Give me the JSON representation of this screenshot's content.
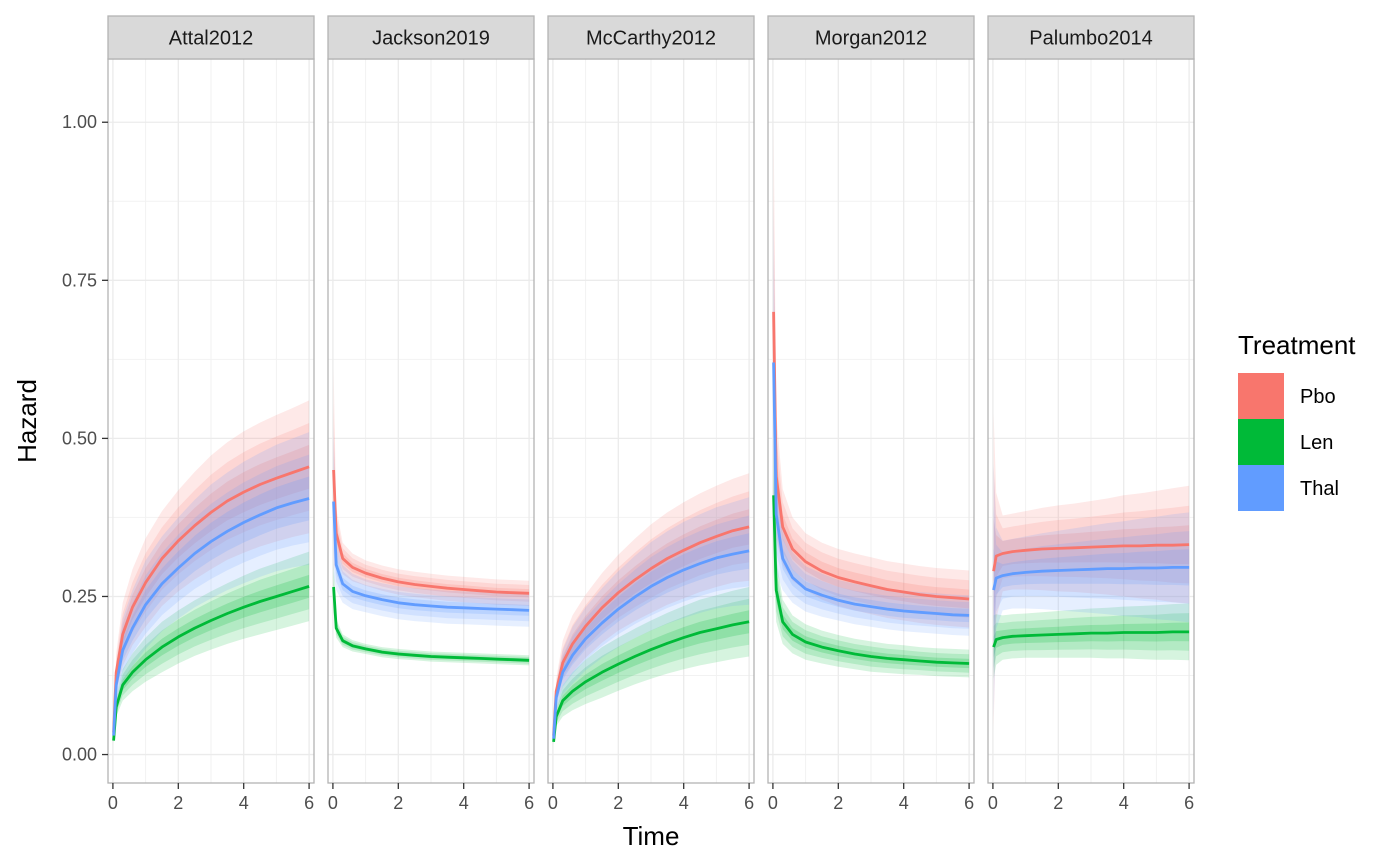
{
  "chart_data": {
    "type": "line",
    "facet_variable": "study",
    "xlabel": "Time",
    "ylabel": "Hazard",
    "xlim": [
      -0.15,
      6.15
    ],
    "ylim": [
      -0.045,
      1.1
    ],
    "x_ticks": [
      0,
      2,
      4,
      6
    ],
    "x_tick_labels": [
      "0",
      "2",
      "4",
      "6"
    ],
    "y_ticks": [
      0,
      0.25,
      0.5,
      0.75,
      1.0
    ],
    "y_tick_labels": [
      "0.00",
      "0.25",
      "0.50",
      "0.75",
      "1.00"
    ],
    "grid": true,
    "theme": "bw",
    "legend": {
      "title": "Treatment",
      "position": "right",
      "entries": [
        {
          "name": "Pbo",
          "color": "#F8766D"
        },
        {
          "name": "Len",
          "color": "#00BA38"
        },
        {
          "name": "Thal",
          "color": "#619CFF"
        }
      ]
    },
    "x": [
      0.02,
      0.1,
      0.3,
      0.6,
      1,
      1.5,
      2,
      2.5,
      3,
      3.5,
      4,
      4.5,
      5,
      5.5,
      6
    ],
    "panels": [
      {
        "title": "Attal2012",
        "series": [
          {
            "name": "Pbo",
            "values": [
              0.035,
              0.13,
              0.19,
              0.233,
              0.272,
              0.31,
              0.338,
              0.362,
              0.383,
              0.401,
              0.415,
              0.427,
              0.437,
              0.446,
              0.455
            ],
            "band_width": [
              0.005,
              0.03,
              0.05,
              0.06,
              0.07,
              0.075,
              0.08,
              0.085,
              0.09,
              0.093,
              0.096,
              0.098,
              0.1,
              0.102,
              0.105
            ]
          },
          {
            "name": "Len",
            "values": [
              0.022,
              0.075,
              0.11,
              0.13,
              0.15,
              0.17,
              0.186,
              0.2,
              0.212,
              0.223,
              0.233,
              0.242,
              0.25,
              0.258,
              0.266
            ],
            "band_width": [
              0.004,
              0.015,
              0.025,
              0.03,
              0.035,
              0.04,
              0.042,
              0.044,
              0.046,
              0.048,
              0.05,
              0.052,
              0.053,
              0.054,
              0.055
            ]
          },
          {
            "name": "Thal",
            "values": [
              0.03,
              0.11,
              0.165,
              0.2,
              0.237,
              0.27,
              0.295,
              0.318,
              0.337,
              0.353,
              0.367,
              0.379,
              0.39,
              0.398,
              0.405
            ],
            "band_width": [
              0.005,
              0.03,
              0.05,
              0.06,
              0.07,
              0.075,
              0.08,
              0.085,
              0.09,
              0.093,
              0.096,
              0.098,
              0.1,
              0.102,
              0.105
            ]
          }
        ]
      },
      {
        "title": "Jackson2019",
        "series": [
          {
            "name": "Pbo",
            "values": [
              0.45,
              0.35,
              0.31,
              0.296,
              0.287,
              0.279,
              0.273,
              0.269,
              0.266,
              0.263,
              0.261,
              0.259,
              0.257,
              0.256,
              0.255
            ],
            "band_width": [
              0.16,
              0.04,
              0.025,
              0.022,
              0.02,
              0.02,
              0.02,
              0.02,
              0.02,
              0.02,
              0.02,
              0.02,
              0.02,
              0.02,
              0.02
            ]
          },
          {
            "name": "Len",
            "values": [
              0.265,
              0.2,
              0.18,
              0.172,
              0.167,
              0.162,
              0.159,
              0.157,
              0.155,
              0.154,
              0.153,
              0.152,
              0.151,
              0.15,
              0.149
            ],
            "band_width": [
              0.04,
              0.015,
              0.01,
              0.009,
              0.008,
              0.008,
              0.008,
              0.008,
              0.008,
              0.008,
              0.008,
              0.008,
              0.008,
              0.008,
              0.008
            ]
          },
          {
            "name": "Thal",
            "values": [
              0.4,
              0.3,
              0.27,
              0.258,
              0.251,
              0.245,
              0.24,
              0.237,
              0.235,
              0.233,
              0.232,
              0.231,
              0.23,
              0.229,
              0.228
            ],
            "band_width": [
              0.12,
              0.04,
              0.03,
              0.028,
              0.026,
              0.026,
              0.026,
              0.026,
              0.026,
              0.026,
              0.026,
              0.026,
              0.026,
              0.026,
              0.026
            ]
          }
        ]
      },
      {
        "title": "McCarthy2012",
        "series": [
          {
            "name": "Pbo",
            "values": [
              0.03,
              0.1,
              0.145,
              0.175,
              0.203,
              0.232,
              0.256,
              0.276,
              0.294,
              0.31,
              0.323,
              0.335,
              0.345,
              0.354,
              0.36
            ],
            "band_width": [
              0.005,
              0.02,
              0.035,
              0.045,
              0.05,
              0.055,
              0.06,
              0.065,
              0.07,
              0.073,
              0.076,
              0.078,
              0.08,
              0.082,
              0.085
            ]
          },
          {
            "name": "Len",
            "values": [
              0.02,
              0.06,
              0.085,
              0.1,
              0.115,
              0.13,
              0.143,
              0.155,
              0.166,
              0.176,
              0.185,
              0.193,
              0.199,
              0.205,
              0.21
            ],
            "band_width": [
              0.004,
              0.015,
              0.025,
              0.03,
              0.035,
              0.04,
              0.042,
              0.044,
              0.046,
              0.048,
              0.05,
              0.052,
              0.053,
              0.054,
              0.055
            ]
          },
          {
            "name": "Thal",
            "values": [
              0.025,
              0.09,
              0.13,
              0.157,
              0.183,
              0.208,
              0.23,
              0.249,
              0.266,
              0.28,
              0.292,
              0.302,
              0.311,
              0.317,
              0.322
            ],
            "band_width": [
              0.005,
              0.02,
              0.035,
              0.045,
              0.05,
              0.055,
              0.06,
              0.065,
              0.07,
              0.073,
              0.076,
              0.078,
              0.08,
              0.082,
              0.085
            ]
          }
        ]
      },
      {
        "title": "Morgan2012",
        "series": [
          {
            "name": "Pbo",
            "values": [
              0.7,
              0.44,
              0.36,
              0.325,
              0.305,
              0.29,
              0.28,
              0.273,
              0.267,
              0.261,
              0.257,
              0.253,
              0.25,
              0.248,
              0.246
            ],
            "band_width": [
              0.3,
              0.1,
              0.06,
              0.05,
              0.045,
              0.045,
              0.045,
              0.045,
              0.045,
              0.045,
              0.045,
              0.045,
              0.045,
              0.045,
              0.045
            ]
          },
          {
            "name": "Len",
            "values": [
              0.41,
              0.26,
              0.21,
              0.19,
              0.178,
              0.17,
              0.164,
              0.159,
              0.155,
              0.152,
              0.15,
              0.148,
              0.146,
              0.145,
              0.144
            ],
            "band_width": [
              0.12,
              0.05,
              0.035,
              0.03,
              0.028,
              0.026,
              0.025,
              0.024,
              0.024,
              0.023,
              0.023,
              0.022,
              0.022,
              0.022,
              0.022
            ]
          },
          {
            "name": "Thal",
            "values": [
              0.62,
              0.38,
              0.31,
              0.28,
              0.262,
              0.252,
              0.244,
              0.238,
              0.234,
              0.23,
              0.227,
              0.225,
              0.223,
              0.221,
              0.22
            ],
            "band_width": [
              0.25,
              0.09,
              0.05,
              0.04,
              0.036,
              0.034,
              0.032,
              0.032,
              0.032,
              0.032,
              0.032,
              0.032,
              0.032,
              0.032,
              0.032
            ]
          }
        ]
      },
      {
        "title": "Palumbo2014",
        "series": [
          {
            "name": "Pbo",
            "values": [
              0.29,
              0.314,
              0.318,
              0.321,
              0.323,
              0.325,
              0.326,
              0.327,
              0.328,
              0.329,
              0.33,
              0.33,
              0.331,
              0.331,
              0.332
            ],
            "band_width": [
              0.25,
              0.1,
              0.06,
              0.06,
              0.062,
              0.065,
              0.068,
              0.07,
              0.073,
              0.076,
              0.08,
              0.083,
              0.086,
              0.09,
              0.093
            ]
          },
          {
            "name": "Len",
            "values": [
              0.17,
              0.182,
              0.185,
              0.187,
              0.188,
              0.189,
              0.19,
              0.191,
              0.192,
              0.192,
              0.193,
              0.193,
              0.193,
              0.194,
              0.194
            ],
            "band_width": [
              0.05,
              0.04,
              0.035,
              0.035,
              0.035,
              0.036,
              0.037,
              0.038,
              0.039,
              0.04,
              0.041,
              0.042,
              0.043,
              0.044,
              0.045
            ]
          },
          {
            "name": "Thal",
            "values": [
              0.26,
              0.279,
              0.283,
              0.286,
              0.288,
              0.29,
              0.291,
              0.292,
              0.293,
              0.294,
              0.294,
              0.295,
              0.295,
              0.296,
              0.296
            ],
            "band_width": [
              0.2,
              0.08,
              0.055,
              0.055,
              0.057,
              0.06,
              0.063,
              0.066,
              0.069,
              0.072,
              0.075,
              0.078,
              0.081,
              0.084,
              0.087
            ]
          }
        ]
      }
    ]
  }
}
